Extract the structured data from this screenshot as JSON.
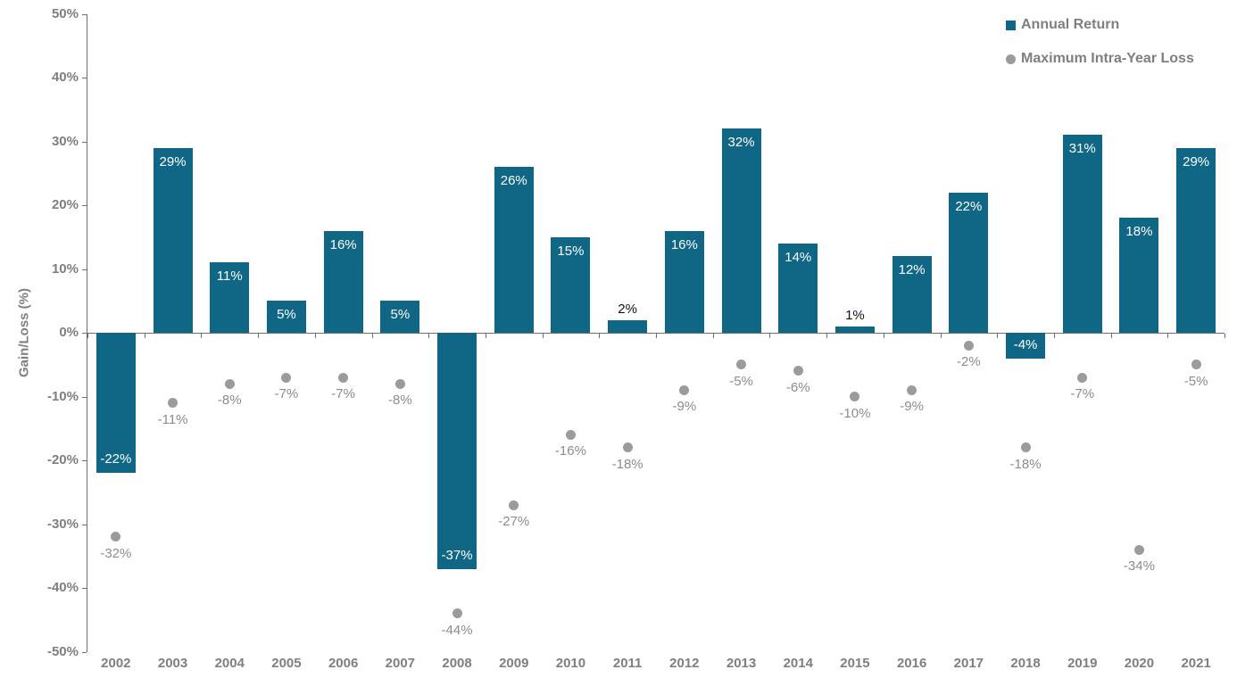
{
  "chart_data": {
    "type": "bar",
    "title": "",
    "categories": [
      "2002",
      "2003",
      "2004",
      "2005",
      "2006",
      "2007",
      "2008",
      "2009",
      "2010",
      "2011",
      "2012",
      "2013",
      "2014",
      "2015",
      "2016",
      "2017",
      "2018",
      "2019",
      "2020",
      "2021"
    ],
    "series": [
      {
        "name": "Annual Return",
        "type": "bar",
        "color": "#106785",
        "values": [
          -22,
          29,
          11,
          5,
          16,
          5,
          -37,
          26,
          15,
          2,
          16,
          32,
          14,
          1,
          12,
          22,
          -4,
          31,
          18,
          29
        ]
      },
      {
        "name": "Maximum Intra-Year Loss",
        "type": "scatter",
        "color": "#9B9B9B",
        "values": [
          -32,
          -11,
          -8,
          -7,
          -7,
          -8,
          -44,
          -27,
          -16,
          -18,
          -9,
          -5,
          -6,
          -10,
          -9,
          -2,
          -18,
          -7,
          -34,
          -5
        ]
      }
    ],
    "xlabel": "",
    "ylabel": "Gain/Loss (%)",
    "ylim": [
      -50,
      50
    ],
    "ytick_step": 10,
    "ytick_suffix": "%",
    "data_label_suffix": "%",
    "grid": false,
    "legend_position": "top-right"
  },
  "colors": {
    "bar": "#106785",
    "dot": "#9B9B9B",
    "axis_line": "#6E6E6E",
    "tick_mark": "#6E6E6E",
    "tick_text": "#7F7F7F",
    "dot_label_text": "#8C8C8C",
    "bar_label_light": "#FFFFFF",
    "bar_label_dark": "#111111",
    "legend_text": "#7F7F7F",
    "background": "#FFFFFF"
  }
}
